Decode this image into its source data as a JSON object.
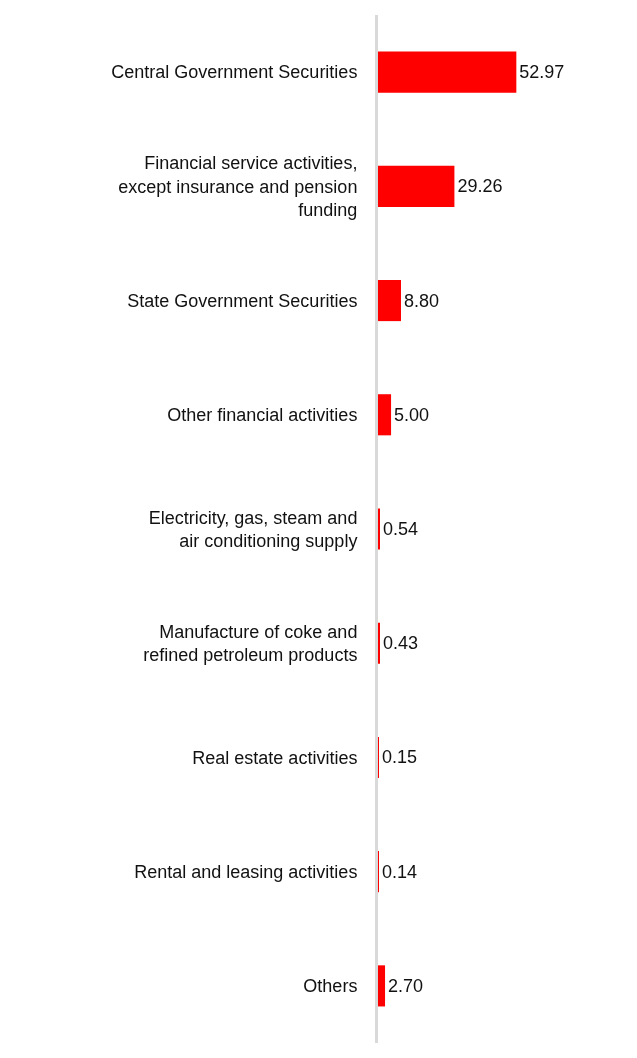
{
  "chart_data": {
    "type": "bar",
    "orientation": "horizontal",
    "categories": [
      "Central Government Securities",
      "Financial service activities, except insurance and pension funding",
      "State Government Securities",
      "Other financial activities",
      "Electricity, gas, steam and air conditioning supply",
      "Manufacture of coke and refined petroleum products",
      "Real estate activities",
      "Rental and leasing activities",
      "Others"
    ],
    "values": [
      52.97,
      29.26,
      8.8,
      5.0,
      0.54,
      0.43,
      0.15,
      0.14,
      2.7
    ],
    "value_labels": [
      "52.97",
      "29.26",
      "8.80",
      "5.00",
      "0.54",
      "0.43",
      "0.15",
      "0.14",
      "2.70"
    ],
    "color": "#ff0000"
  }
}
